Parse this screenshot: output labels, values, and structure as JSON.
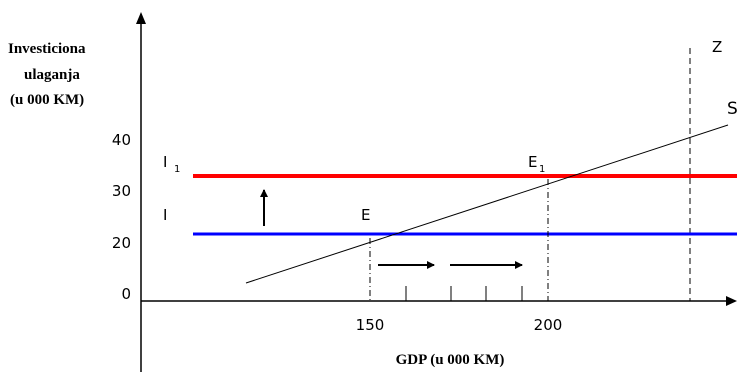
{
  "chart_data": {
    "type": "line",
    "ylabel_lines": [
      "Investiciona",
      "ulaganja",
      "(u 000 KM)"
    ],
    "xlabel": "GDP (u 000 KM)",
    "x_ticks": [
      150,
      200
    ],
    "y_ticks": [
      0,
      20,
      30,
      40
    ],
    "xlim": [
      110,
      250
    ],
    "ylim": [
      -12,
      50
    ],
    "series": [
      {
        "name": "I",
        "color": "#0000ff",
        "points": [
          [
            125,
            22
          ],
          [
            250,
            22
          ]
        ]
      },
      {
        "name": "I",
        "subscript": "1",
        "color": "#ff0000",
        "points": [
          [
            125,
            33
          ],
          [
            250,
            33
          ]
        ]
      },
      {
        "name": "S",
        "color": "#000000",
        "points": [
          [
            120,
            6
          ],
          [
            245,
            43
          ]
        ]
      }
    ],
    "z_line": {
      "label": "Z",
      "x": 235
    },
    "points": [
      {
        "label": "E",
        "x": 150,
        "y": 22
      },
      {
        "label": "E",
        "subscript": "1",
        "x": 200,
        "y": 33
      }
    ],
    "ticks_on_axis": [
      160,
      172,
      183,
      195
    ]
  }
}
